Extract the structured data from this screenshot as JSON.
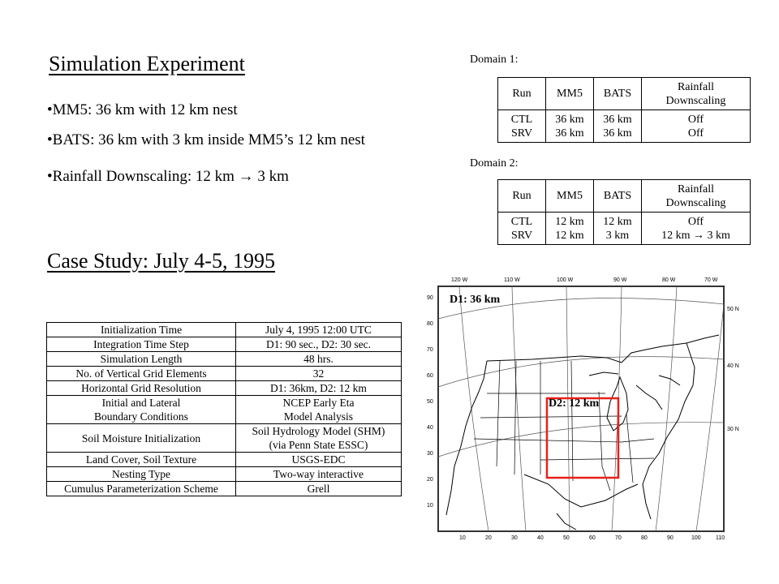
{
  "sim": {
    "title": "Simulation Experiment",
    "bullets": [
      "•MM5: 36 km with 12 km nest",
      "•BATS: 36 km with 3 km inside MM5’s 12 km nest",
      "•Rainfall Downscaling: 12 km → 3 km"
    ]
  },
  "domain1": {
    "label": "Domain 1:",
    "headers": [
      "Run",
      "MM5",
      "BATS",
      "Rainfall",
      "Downscaling"
    ],
    "runs": [
      "CTL",
      "SRV"
    ],
    "mm5": [
      "36 km",
      "36 km"
    ],
    "bats": [
      "36 km",
      "36 km"
    ],
    "rain": [
      "Off",
      "Off"
    ]
  },
  "domain2": {
    "label": "Domain 2:",
    "headers": [
      "Run",
      "MM5",
      "BATS",
      "Rainfall",
      "Downscaling"
    ],
    "runs": [
      "CTL",
      "SRV"
    ],
    "mm5": [
      "12 km",
      "12 km"
    ],
    "bats": [
      "12 km",
      "3 km"
    ],
    "rain": [
      "Off",
      "12 km → 3 km"
    ]
  },
  "case": {
    "title": "Case Study: July 4-5, 1995",
    "rows": [
      [
        "Initialization Time",
        "July 4, 1995 12:00 UTC"
      ],
      [
        "Integration Time Step",
        "D1: 90 sec., D2: 30 sec."
      ],
      [
        "Simulation Length",
        "48 hrs."
      ],
      [
        "No. of Vertical Grid Elements",
        "32"
      ],
      [
        "Horizontal Grid Resolution",
        "D1: 36km, D2: 12 km"
      ],
      [
        "Initial and Lateral",
        "NCEP Early Eta",
        "Boundary Conditions",
        "Model Analysis"
      ],
      [
        "Soil Moisture Initialization",
        "Soil Hydrology Model (SHM)",
        "",
        "(via Penn State ESSC)"
      ],
      [
        "Land Cover, Soil Texture",
        "USGS-EDC"
      ],
      [
        "Nesting Type",
        "Two-way interactive"
      ],
      [
        "Cumulus Parameterization Scheme",
        "Grell"
      ]
    ]
  },
  "map": {
    "d1_label": "D1: 36 km",
    "d2_label": "D2: 12 km",
    "lon_labels": [
      "120 W",
      "110 W",
      "100 W",
      "90 W",
      "80 W",
      "70 W"
    ],
    "lat_labels": [
      "50 N",
      "40 N",
      "30 N"
    ],
    "x_ticks": [
      "10",
      "20",
      "30",
      "40",
      "50",
      "60",
      "70",
      "80",
      "90",
      "100",
      "110"
    ],
    "y_ticks": [
      "90",
      "80",
      "70",
      "60",
      "50",
      "40",
      "30",
      "20",
      "10"
    ],
    "d2_color": "#e8211a"
  }
}
